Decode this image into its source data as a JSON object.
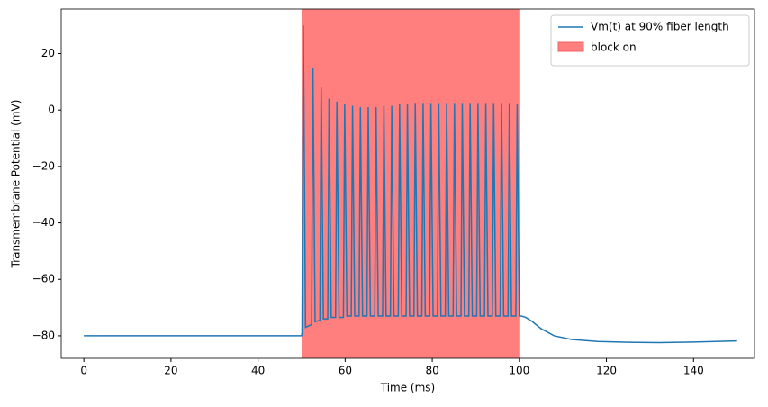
{
  "chart_data": {
    "type": "line",
    "xlabel": "Time (ms)",
    "ylabel": "Transmembrane Potential (mV)",
    "xlim": [
      -5.2,
      154
    ],
    "ylim": [
      -88,
      35.8
    ],
    "xticks": [
      0,
      20,
      40,
      60,
      80,
      100,
      120,
      140
    ],
    "yticks": [
      {
        "value": -80,
        "label": "−80"
      },
      {
        "value": -60,
        "label": "−60"
      },
      {
        "value": -40,
        "label": "−40"
      },
      {
        "value": -20,
        "label": "−20"
      },
      0,
      20
    ],
    "legend": "upper right",
    "span": {
      "name": "block on",
      "x": [
        50,
        100
      ],
      "color": "#ff7f7f"
    },
    "x": [
      0,
      50,
      50.1,
      50.4,
      50.9,
      52.3,
      52.6,
      53.1,
      54.2,
      54.5,
      55.0,
      56.0,
      56.3,
      56.8,
      57.8,
      58.1,
      58.6,
      59.6,
      59.9,
      60.4,
      61.4,
      61.7,
      62.2,
      63.2,
      63.5,
      64.0,
      65.0,
      65.3,
      65.8,
      66.8,
      67.1,
      67.6,
      68.6,
      68.9,
      69.4,
      70.4,
      70.7,
      71.2,
      72.2,
      72.5,
      73.0,
      74.0,
      74.3,
      74.8,
      75.8,
      76.1,
      76.6,
      77.6,
      77.9,
      78.4,
      79.4,
      79.7,
      80.2,
      81.2,
      81.5,
      82.0,
      83.0,
      83.3,
      83.8,
      84.8,
      85.1,
      85.6,
      86.6,
      86.9,
      87.4,
      88.4,
      88.7,
      89.2,
      90.2,
      90.5,
      91.0,
      92.0,
      92.3,
      92.8,
      93.8,
      94.1,
      94.6,
      95.6,
      95.9,
      96.4,
      97.4,
      97.7,
      98.2,
      99.2,
      99.5,
      100.0,
      100.5,
      101.5,
      103,
      105,
      108,
      112,
      118,
      125,
      132,
      140,
      150
    ],
    "series": [
      {
        "name": "Vm(t) at 90% fiber length",
        "color": "#1f77b4",
        "values": [
          -80,
          -80,
          -79,
          30,
          -77,
          -76,
          15,
          -75,
          -74.5,
          8,
          -74,
          -74,
          4,
          -73.5,
          -73.5,
          3,
          -73.5,
          -73.5,
          2,
          -73,
          -73,
          1.5,
          -73,
          -73,
          1,
          -73,
          -73,
          1,
          -73,
          -73,
          1,
          -73,
          -73,
          1.5,
          -73,
          -73,
          1.5,
          -73,
          -73,
          2,
          -73,
          -73,
          2,
          -73,
          -73,
          2.5,
          -73,
          -73,
          2.5,
          -73,
          -73,
          2.5,
          -73,
          -73,
          2.5,
          -73,
          -73,
          2.5,
          -73,
          -73,
          2.5,
          -73,
          -73,
          2.5,
          -73,
          -73,
          2.5,
          -73,
          -73,
          2.5,
          -73,
          -73,
          2.5,
          -73,
          -73,
          2.5,
          -73,
          -73,
          2.5,
          -73,
          -73,
          2.5,
          -73,
          -73,
          2,
          -73,
          -73,
          -73.5,
          -75,
          -77.5,
          -80,
          -81.3,
          -82,
          -82.3,
          -82.4,
          -82.2,
          -81.8
        ]
      }
    ]
  }
}
